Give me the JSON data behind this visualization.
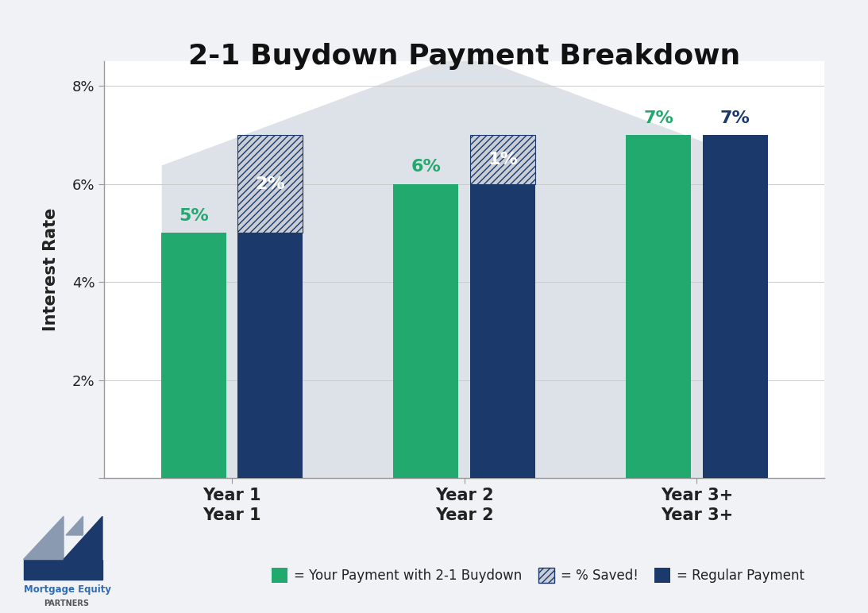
{
  "title": "2-1 Buydown Payment Breakdown",
  "ylabel": "Interest Rate",
  "categories": [
    "Year 1",
    "Year 2",
    "Year 3+"
  ],
  "green_values": [
    5,
    6,
    7
  ],
  "hatch_values": [
    2,
    1,
    0
  ],
  "total_values": [
    7,
    7,
    7
  ],
  "green_labels": [
    "5%",
    "6%",
    "7%"
  ],
  "hatch_labels": [
    "2%",
    "1%",
    ""
  ],
  "navy_top_labels": [
    "",
    "",
    "7%"
  ],
  "green_color": "#22A96E",
  "navy_color": "#1B3A6B",
  "hatch_bg_color": "#c8cdd6",
  "hatch_line_color": "#1B3A6B",
  "background_color": "#f0f2f5",
  "plot_bg_color": "#ffffff",
  "house_color": "#dde1e8",
  "ylim": [
    0,
    8.5
  ],
  "yticks": [
    0,
    2,
    4,
    6,
    8
  ],
  "ytick_labels": [
    "",
    "2%",
    "4%",
    "6%",
    "8%"
  ],
  "bar_width": 0.28,
  "bar_gap": 0.05,
  "legend_items": [
    {
      "label": "= Your Payment with 2-1 Buydown",
      "color": "#22A96E",
      "hatch": ""
    },
    {
      "label": "= % Saved!",
      "color": "#c8cdd6",
      "hatch": "////"
    },
    {
      "label": "= Regular Payment",
      "color": "#1B3A6B",
      "hatch": ""
    }
  ],
  "title_fontsize": 26,
  "axis_label_fontsize": 15,
  "tick_fontsize": 13,
  "bar_label_fontsize": 16,
  "legend_fontsize": 12,
  "category_fontsize": 15,
  "spine_color": "#999999"
}
